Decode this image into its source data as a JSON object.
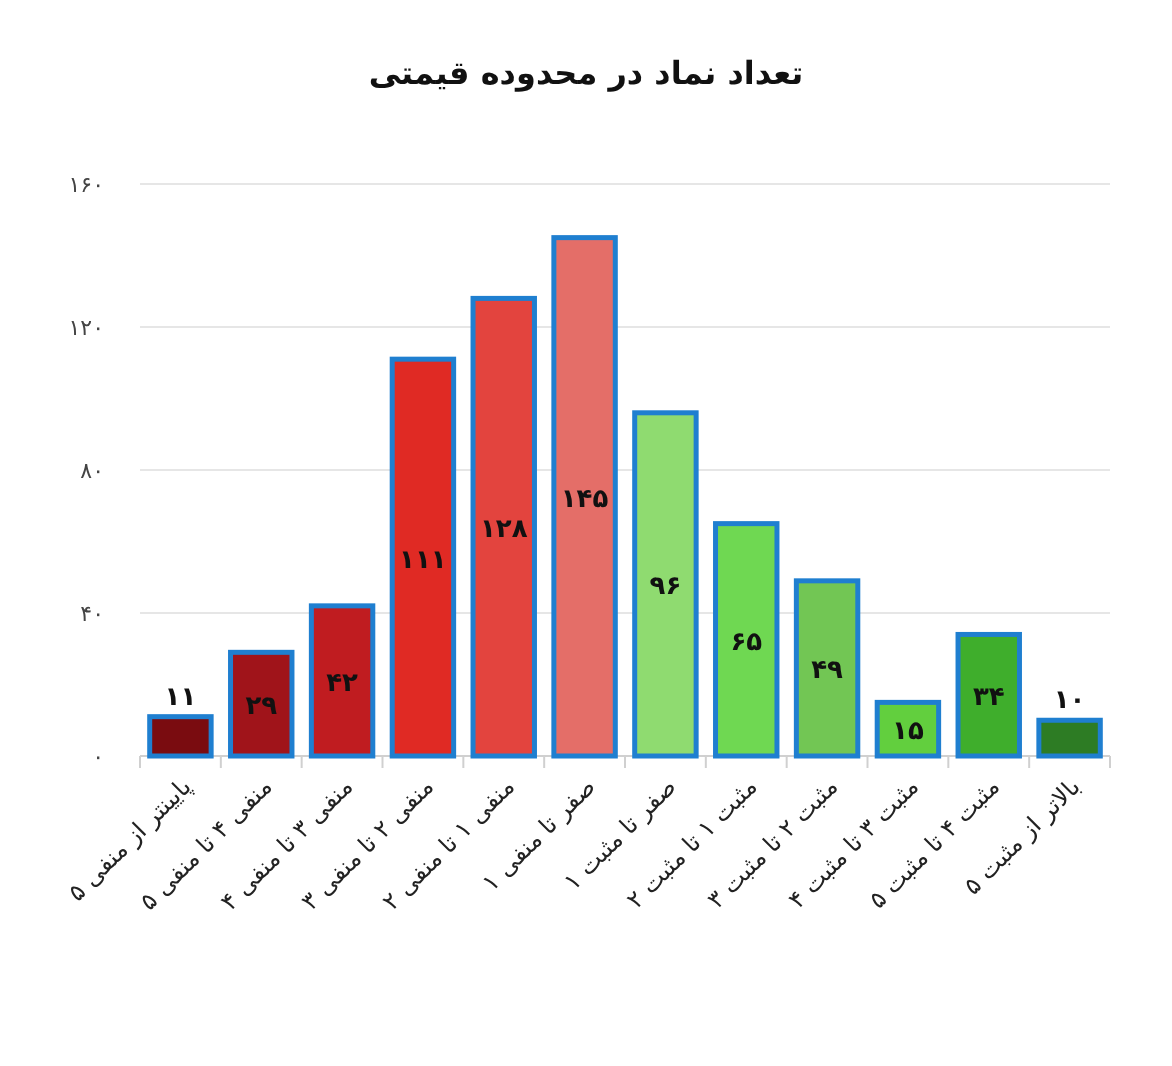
{
  "chart_data": {
    "type": "bar",
    "title": "تعداد نماد در محدوده قیمتی",
    "categories": [
      "پایینتر از منفی ۵",
      "منفی ۴ تا منفی ۵",
      "منفی ۳ تا منفی ۴",
      "منفی ۲ تا منفی ۳",
      "منفی ۱ تا منفی ۲",
      "صفر تا منفی ۱",
      "صفر تا مثبت ۱",
      "مثبت ۱ تا مثبت ۲",
      "مثبت ۲ تا مثبت ۳",
      "مثبت ۳ تا مثبت ۴",
      "مثبت ۴ تا مثبت ۵",
      "بالاتر از مثبت ۵"
    ],
    "values": [
      11,
      29,
      42,
      111,
      128,
      145,
      96,
      65,
      49,
      15,
      34,
      10
    ],
    "value_labels": [
      "۱۱",
      "۲۹",
      "۴۲",
      "۱۱۱",
      "۱۲۸",
      "۱۴۵",
      "۹۶",
      "۶۵",
      "۴۹",
      "۱۵",
      "۳۴",
      "۱۰"
    ],
    "colors": [
      "#7a0c10",
      "#a0141a",
      "#c01c20",
      "#e02a24",
      "#e3443e",
      "#e46e68",
      "#8fdb70",
      "#6fd852",
      "#72c654",
      "#62cf3e",
      "#3fae2c",
      "#2d7c24"
    ],
    "ylim": [
      0,
      160
    ],
    "yticks": [
      {
        "value": 0,
        "label": "۰"
      },
      {
        "value": 40,
        "label": "۴۰"
      },
      {
        "value": 80,
        "label": "۸۰"
      },
      {
        "value": 120,
        "label": "۱۲۰"
      },
      {
        "value": 160,
        "label": "۱۶۰"
      }
    ],
    "grid": "y"
  }
}
